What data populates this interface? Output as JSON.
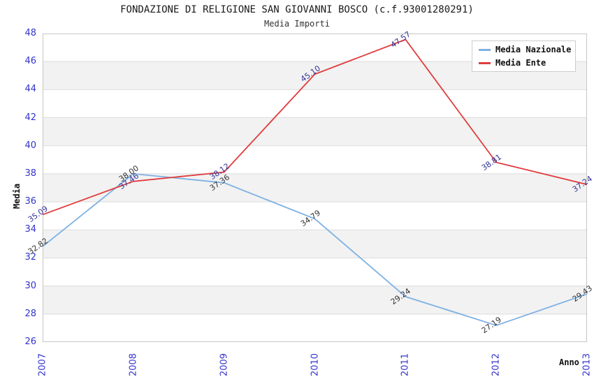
{
  "page": {
    "title": "FONDAZIONE DI RELIGIONE SAN GIOVANNI BOSCO (c.f.93001280291)",
    "subtitle": "Media Importi"
  },
  "chart_data": {
    "type": "line",
    "x": [
      2007,
      2008,
      2009,
      2010,
      2011,
      2012,
      2013
    ],
    "xtick_labels": [
      "2007",
      "2008",
      "2009",
      "2010",
      "2011",
      "2012",
      "2013"
    ],
    "xlabel": "Anno",
    "ylabel": "Media",
    "ylim": [
      26,
      48
    ],
    "ytick_step": 2,
    "grid": true,
    "background_bands": "alternating white and light gray every 2 units",
    "legend_position": "top-right",
    "series": [
      {
        "name": "Media Nazionale",
        "color": "#7EB1E3",
        "label_color": "#333333",
        "values": [
          32.82,
          38.0,
          37.36,
          34.79,
          29.24,
          27.19,
          29.43
        ]
      },
      {
        "name": "Media Ente",
        "color": "#E03C3C",
        "label_color": "#333399",
        "values": [
          35.09,
          37.46,
          38.12,
          45.1,
          47.57,
          38.81,
          37.24
        ]
      }
    ]
  },
  "style_colors": {
    "tick_label": "#3333cc",
    "band_gray": "#f2f2f2",
    "gridline": "#dcdcdc",
    "plot_border": "#c6c6c6",
    "title_text": "#1a1a1a"
  }
}
